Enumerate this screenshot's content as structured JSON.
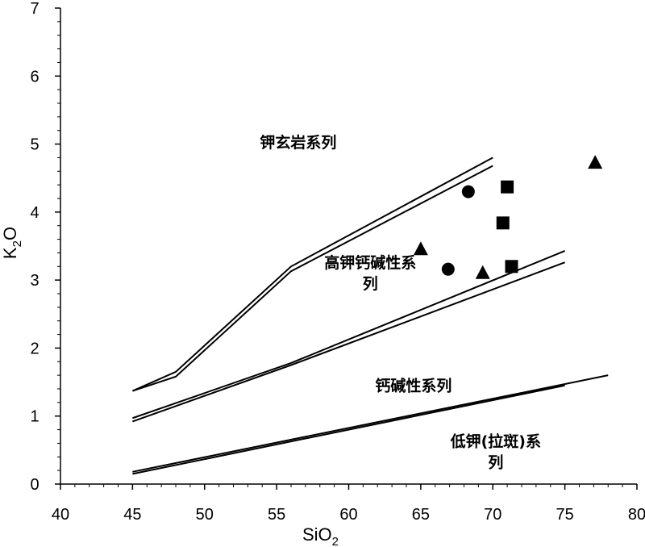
{
  "chart_data": {
    "type": "scatter",
    "xlabel_main": "SiO",
    "xlabel_sub": "2",
    "ylabel_main": "K",
    "ylabel_sub": "2",
    "ylabel_tail": "O",
    "xlim": [
      40,
      80
    ],
    "ylim": [
      0,
      7
    ],
    "x_ticks": [
      40,
      45,
      50,
      55,
      60,
      65,
      70,
      75,
      80
    ],
    "y_ticks": [
      0,
      1,
      2,
      3,
      4,
      5,
      6,
      7
    ],
    "x_tick_labels": [
      "40",
      "45",
      "50",
      "55",
      "60",
      "65",
      "70",
      "75",
      "80"
    ],
    "y_tick_labels": [
      "0",
      "1",
      "2",
      "3",
      "4",
      "5",
      "6",
      "7"
    ],
    "grid": false,
    "boundary_lines": [
      [
        [
          45,
          1.37
        ],
        [
          48,
          1.65
        ],
        [
          56,
          3.2
        ],
        [
          70,
          4.8
        ]
      ],
      [
        [
          45,
          1.37
        ],
        [
          48,
          1.58
        ],
        [
          56,
          3.13
        ],
        [
          70,
          4.68
        ]
      ],
      [
        [
          45,
          0.97
        ],
        [
          56,
          1.78
        ],
        [
          75,
          3.43
        ]
      ],
      [
        [
          45,
          0.92
        ],
        [
          56,
          1.75
        ],
        [
          75,
          3.26
        ]
      ],
      [
        [
          45,
          0.18
        ],
        [
          78,
          1.6
        ]
      ],
      [
        [
          45,
          0.15
        ],
        [
          75,
          1.45
        ]
      ]
    ],
    "series": [
      {
        "marker": "circle",
        "points": [
          [
            68.3,
            4.3
          ],
          [
            66.9,
            3.16
          ]
        ]
      },
      {
        "marker": "square",
        "points": [
          [
            71.0,
            4.37
          ],
          [
            70.7,
            3.84
          ],
          [
            71.3,
            3.2
          ]
        ]
      },
      {
        "marker": "triangle",
        "points": [
          [
            65.0,
            3.45
          ],
          [
            69.3,
            3.1
          ],
          [
            77.1,
            4.72
          ]
        ]
      }
    ],
    "field_labels": [
      {
        "lines": [
          "钾玄岩系列"
        ],
        "x": 56.5,
        "y": 4.95
      },
      {
        "lines": [
          "高钾钙碱性系",
          "列"
        ],
        "x": 61.5,
        "y": 3.18
      },
      {
        "lines": [
          "钙碱性系列"
        ],
        "x": 64.5,
        "y": 1.37
      },
      {
        "lines": [
          "低钾(拉斑)系",
          "列"
        ],
        "x": 70.2,
        "y": 0.55
      }
    ]
  }
}
